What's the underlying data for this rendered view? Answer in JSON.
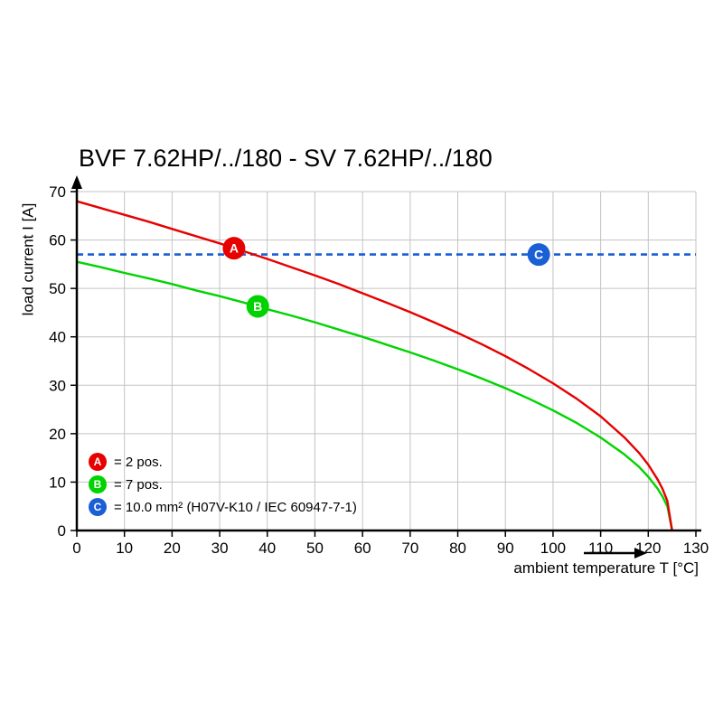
{
  "chart_data": {
    "type": "line",
    "title": "BVF 7.62HP/../180 - SV 7.62HP/../180",
    "xlabel": "ambient temperature T [°C]",
    "ylabel": "load current I [A]",
    "xlim": [
      0,
      130
    ],
    "ylim": [
      0,
      70
    ],
    "xticks": [
      0,
      10,
      20,
      30,
      40,
      50,
      60,
      70,
      80,
      90,
      100,
      110,
      120,
      130
    ],
    "yticks": [
      0,
      10,
      20,
      30,
      40,
      50,
      60,
      70
    ],
    "grid": true,
    "grid_color": "#c3c3c3",
    "axis_color": "#000000",
    "legend_position": "inside-bottom-left",
    "series": [
      {
        "name": "A",
        "label": "= 2 pos.",
        "color": "#e60000",
        "style": "solid",
        "points": [
          [
            0,
            68
          ],
          [
            5,
            66.6
          ],
          [
            10,
            65.2
          ],
          [
            15,
            63.8
          ],
          [
            20,
            62.3
          ],
          [
            25,
            60.8
          ],
          [
            30,
            59.3
          ],
          [
            35,
            57.7
          ],
          [
            40,
            56.1
          ],
          [
            45,
            54.4
          ],
          [
            50,
            52.7
          ],
          [
            55,
            50.9
          ],
          [
            60,
            49.0
          ],
          [
            65,
            47.1
          ],
          [
            70,
            45.1
          ],
          [
            75,
            43.0
          ],
          [
            80,
            40.8
          ],
          [
            85,
            38.5
          ],
          [
            90,
            36.0
          ],
          [
            95,
            33.3
          ],
          [
            100,
            30.4
          ],
          [
            105,
            27.2
          ],
          [
            110,
            23.6
          ],
          [
            115,
            19.2
          ],
          [
            118,
            16.1
          ],
          [
            120,
            13.6
          ],
          [
            122,
            10.5
          ],
          [
            123,
            8.6
          ],
          [
            124,
            6.1
          ],
          [
            125,
            0
          ]
        ]
      },
      {
        "name": "B",
        "label": "= 7 pos.",
        "color": "#00d400",
        "style": "solid",
        "points": [
          [
            0,
            55.5
          ],
          [
            5,
            54.4
          ],
          [
            10,
            53.2
          ],
          [
            15,
            52.1
          ],
          [
            20,
            50.9
          ],
          [
            25,
            49.6
          ],
          [
            30,
            48.4
          ],
          [
            35,
            47.1
          ],
          [
            40,
            45.7
          ],
          [
            45,
            44.4
          ],
          [
            50,
            43.0
          ],
          [
            55,
            41.5
          ],
          [
            60,
            40.0
          ],
          [
            65,
            38.4
          ],
          [
            70,
            36.8
          ],
          [
            75,
            35.1
          ],
          [
            80,
            33.3
          ],
          [
            85,
            31.4
          ],
          [
            90,
            29.4
          ],
          [
            95,
            27.2
          ],
          [
            100,
            24.8
          ],
          [
            105,
            22.2
          ],
          [
            110,
            19.2
          ],
          [
            115,
            15.7
          ],
          [
            118,
            13.2
          ],
          [
            120,
            11.1
          ],
          [
            122,
            8.6
          ],
          [
            123,
            7.0
          ],
          [
            124,
            5.0
          ],
          [
            125,
            0
          ]
        ]
      },
      {
        "name": "C",
        "label": "= 10.0 mm² (H07V-K10 / IEC 60947-7-1)",
        "color": "#1a5fd6",
        "style": "dashed",
        "points": [
          [
            0,
            57
          ],
          [
            130,
            57
          ]
        ]
      }
    ],
    "markers": [
      {
        "letter": "A",
        "x": 33,
        "y": 58.3,
        "color": "#e60000"
      },
      {
        "letter": "B",
        "x": 38,
        "y": 46.3,
        "color": "#00d400"
      },
      {
        "letter": "C",
        "x": 97,
        "y": 57,
        "color": "#1a5fd6"
      }
    ]
  }
}
